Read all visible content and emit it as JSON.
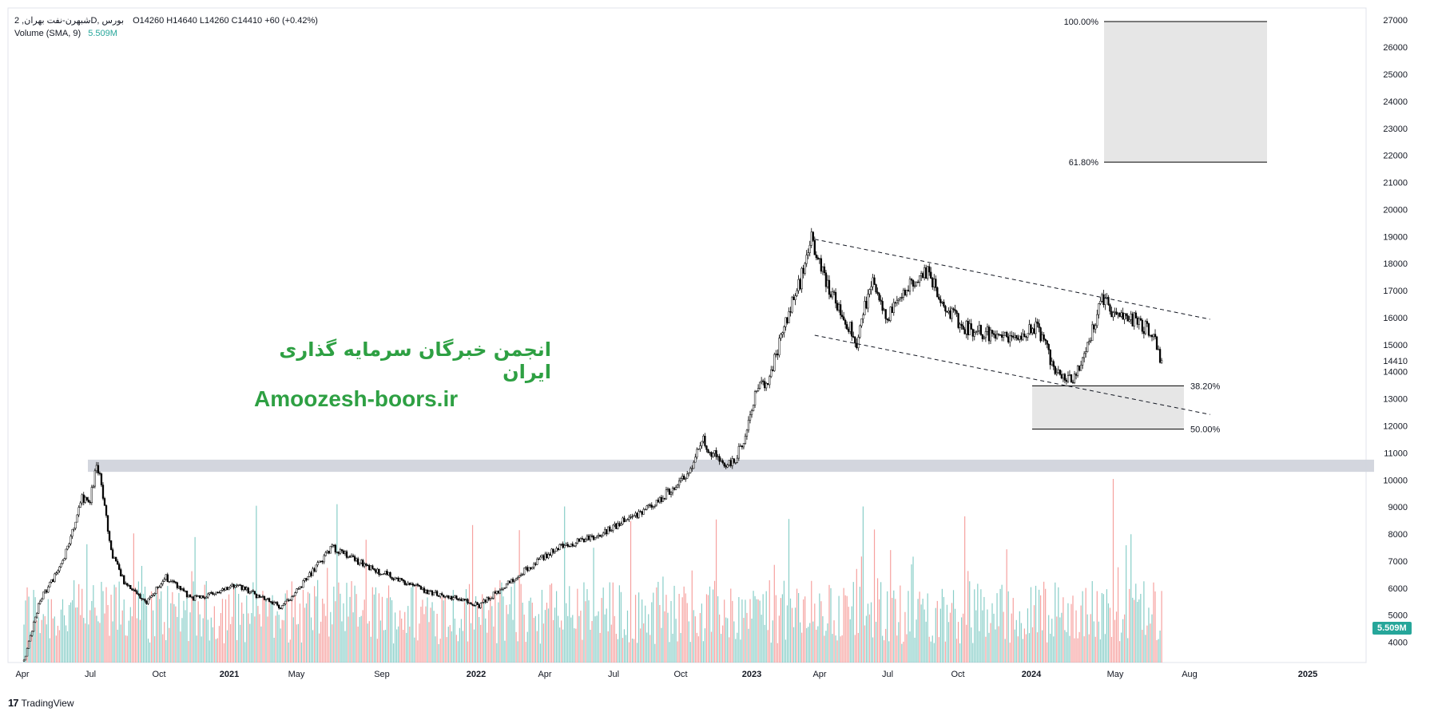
{
  "legend": {
    "symbol": "شبهرن-نفت بهران, 2D, بورس",
    "ohlc": "O14260  H14640  L14260  C14410  +60 (+0.42%)",
    "volume_label": "Volume (SMA, 9)",
    "volume_value": "5.509M"
  },
  "watermark": {
    "persian": "انجمن خبرگان سرمایه گذاری ایران",
    "url": "Amoozesh-boors.ir"
  },
  "branding": {
    "name": "TradingView"
  },
  "colors": {
    "up_volume": "#26a69a",
    "down_volume": "#ef5350",
    "candle": "#000000",
    "zone": "#d1d4dc",
    "fib_box": "#e6e6e6",
    "watermark": "#2ea043"
  },
  "chart_data": {
    "type": "candlestick",
    "x_ticks": [
      "Apr",
      "Jul",
      "Oct",
      "2021",
      "May",
      "Sep",
      "2022",
      "Apr",
      "Jul",
      "Oct",
      "2023",
      "Apr",
      "Jul",
      "Oct",
      "2024",
      "May",
      "Aug",
      "2025"
    ],
    "y_ticks": [
      4000,
      5000,
      6000,
      7000,
      8000,
      9000,
      10000,
      11000,
      12000,
      13000,
      14000,
      15000,
      16000,
      17000,
      18000,
      19000,
      20000,
      21000,
      22000,
      23000,
      24000,
      25000,
      26000,
      27000
    ],
    "ylim": [
      3250,
      27450
    ],
    "last_price": 14410,
    "last_price_label": "14410",
    "volume_last_label": "5.509M",
    "price_path": [
      [
        0,
        3300
      ],
      [
        10,
        5600
      ],
      [
        18,
        6300
      ],
      [
        28,
        7600
      ],
      [
        35,
        9300
      ],
      [
        41,
        9300
      ],
      [
        45,
        10500
      ],
      [
        48,
        9900
      ],
      [
        54,
        7300
      ],
      [
        63,
        6100
      ],
      [
        76,
        5500
      ],
      [
        88,
        6400
      ],
      [
        104,
        5600
      ],
      [
        118,
        5800
      ],
      [
        132,
        6100
      ],
      [
        145,
        5700
      ],
      [
        160,
        5300
      ],
      [
        176,
        6400
      ],
      [
        191,
        7500
      ],
      [
        200,
        7200
      ],
      [
        216,
        6700
      ],
      [
        230,
        6400
      ],
      [
        248,
        5900
      ],
      [
        263,
        5700
      ],
      [
        282,
        5350
      ],
      [
        296,
        6000
      ],
      [
        316,
        6900
      ],
      [
        334,
        7600
      ],
      [
        356,
        7900
      ],
      [
        372,
        8500
      ],
      [
        388,
        9000
      ],
      [
        400,
        9600
      ],
      [
        414,
        10400
      ],
      [
        420,
        11500
      ],
      [
        432,
        10600
      ],
      [
        440,
        10600
      ],
      [
        446,
        11500
      ],
      [
        454,
        13300
      ],
      [
        462,
        13800
      ],
      [
        470,
        15500
      ],
      [
        478,
        16800
      ],
      [
        484,
        17900
      ],
      [
        488,
        18900
      ],
      [
        496,
        17400
      ],
      [
        508,
        16100
      ],
      [
        516,
        15100
      ],
      [
        526,
        17600
      ],
      [
        534,
        15900
      ],
      [
        546,
        17000
      ],
      [
        558,
        17800
      ],
      [
        568,
        16800
      ],
      [
        580,
        15700
      ],
      [
        592,
        15500
      ],
      [
        610,
        15200
      ],
      [
        628,
        15700
      ],
      [
        638,
        14200
      ],
      [
        650,
        13700
      ],
      [
        660,
        15100
      ],
      [
        668,
        16800
      ],
      [
        676,
        16000
      ],
      [
        690,
        15900
      ],
      [
        700,
        15300
      ],
      [
        705,
        14410
      ]
    ],
    "volume_scale_max": 9200,
    "channel_upper": [
      [
        490,
        18900
      ],
      [
        735,
        15940
      ]
    ],
    "channel_lower": [
      [
        490,
        15350
      ],
      [
        735,
        12420
      ]
    ],
    "support_zone": {
      "from": 10300,
      "to": 10750
    },
    "fib_levels": [
      {
        "label": "100.00%",
        "price": 26950
      },
      {
        "label": "61.80%",
        "price": 21750
      },
      {
        "label": "38.20%",
        "price": 13480
      },
      {
        "label": "50.00%",
        "price": 11880
      }
    ]
  }
}
